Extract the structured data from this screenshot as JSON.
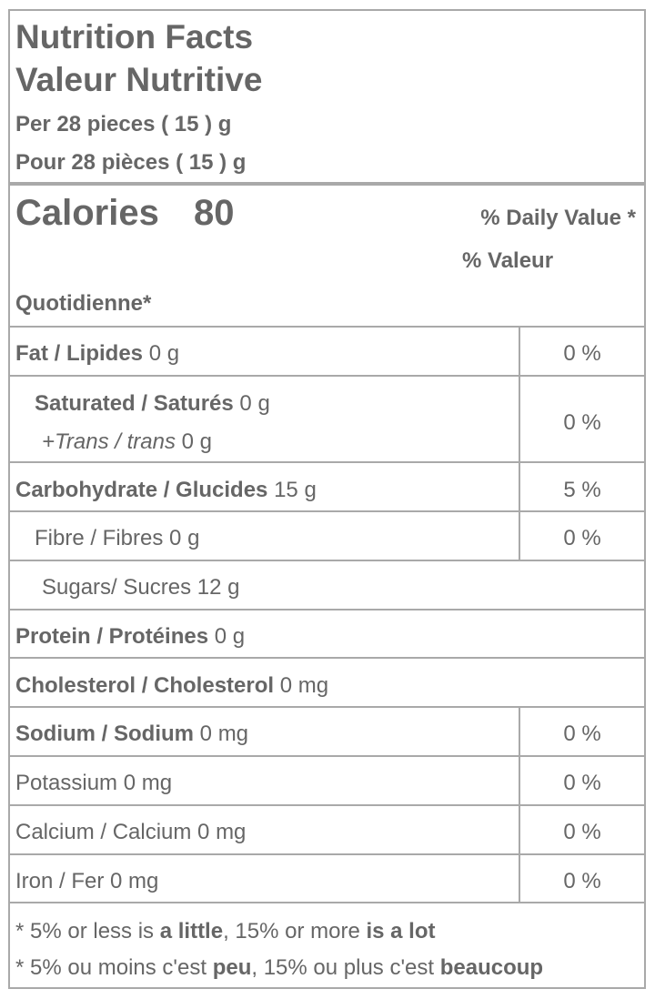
{
  "header": {
    "title_en": "Nutrition Facts",
    "title_fr": "Valeur Nutritive",
    "serving_en": "Per 28 pieces ( 15 ) g",
    "serving_fr": "Pour 28 pièces ( 15 ) g"
  },
  "calories": {
    "label": "Calories",
    "value": "80",
    "dv_line1": "% Daily Value *",
    "dv_line2": "% Valeur",
    "dv_line3": "Quotidienne*"
  },
  "rows": {
    "fat": {
      "label": "Fat / Lipides",
      "amount": "0 g",
      "dv": "0 %"
    },
    "saturated": {
      "label": "Saturated / Saturés",
      "amount": "0 g"
    },
    "trans": {
      "label": "+Trans / trans",
      "amount": "0 g"
    },
    "sat_trans_dv": "0 %",
    "carbohydrate": {
      "label": "Carbohydrate / Glucides",
      "amount": "15 g",
      "dv": "5 %"
    },
    "fibre": {
      "label": "Fibre / Fibres",
      "amount": "0 g",
      "dv": "0 %"
    },
    "sugars": {
      "label": "Sugars/ Sucres",
      "amount": "12 g"
    },
    "protein": {
      "label": "Protein / Protéines",
      "amount": "0 g"
    },
    "cholesterol": {
      "label": "Cholesterol / Cholesterol",
      "amount": "0 mg"
    },
    "sodium": {
      "label": "Sodium / Sodium",
      "amount": "0 mg",
      "dv": "0 %"
    },
    "potassium": {
      "label": "Potassium",
      "amount": "0 mg",
      "dv": "0 %"
    },
    "calcium": {
      "label": "Calcium / Calcium",
      "amount": "0 mg",
      "dv": "0 %"
    },
    "iron": {
      "label": "Iron / Fer",
      "amount": "0 mg",
      "dv": "0 %"
    }
  },
  "footnote": {
    "en_a": "* 5% or less is ",
    "en_b": "a little",
    "en_c": ", 15% or more ",
    "en_d": "is a lot",
    "fr_a": "* 5% ou moins c'est ",
    "fr_b": "peu",
    "fr_c": ", 15% ou plus c'est ",
    "fr_d": "beaucoup"
  }
}
